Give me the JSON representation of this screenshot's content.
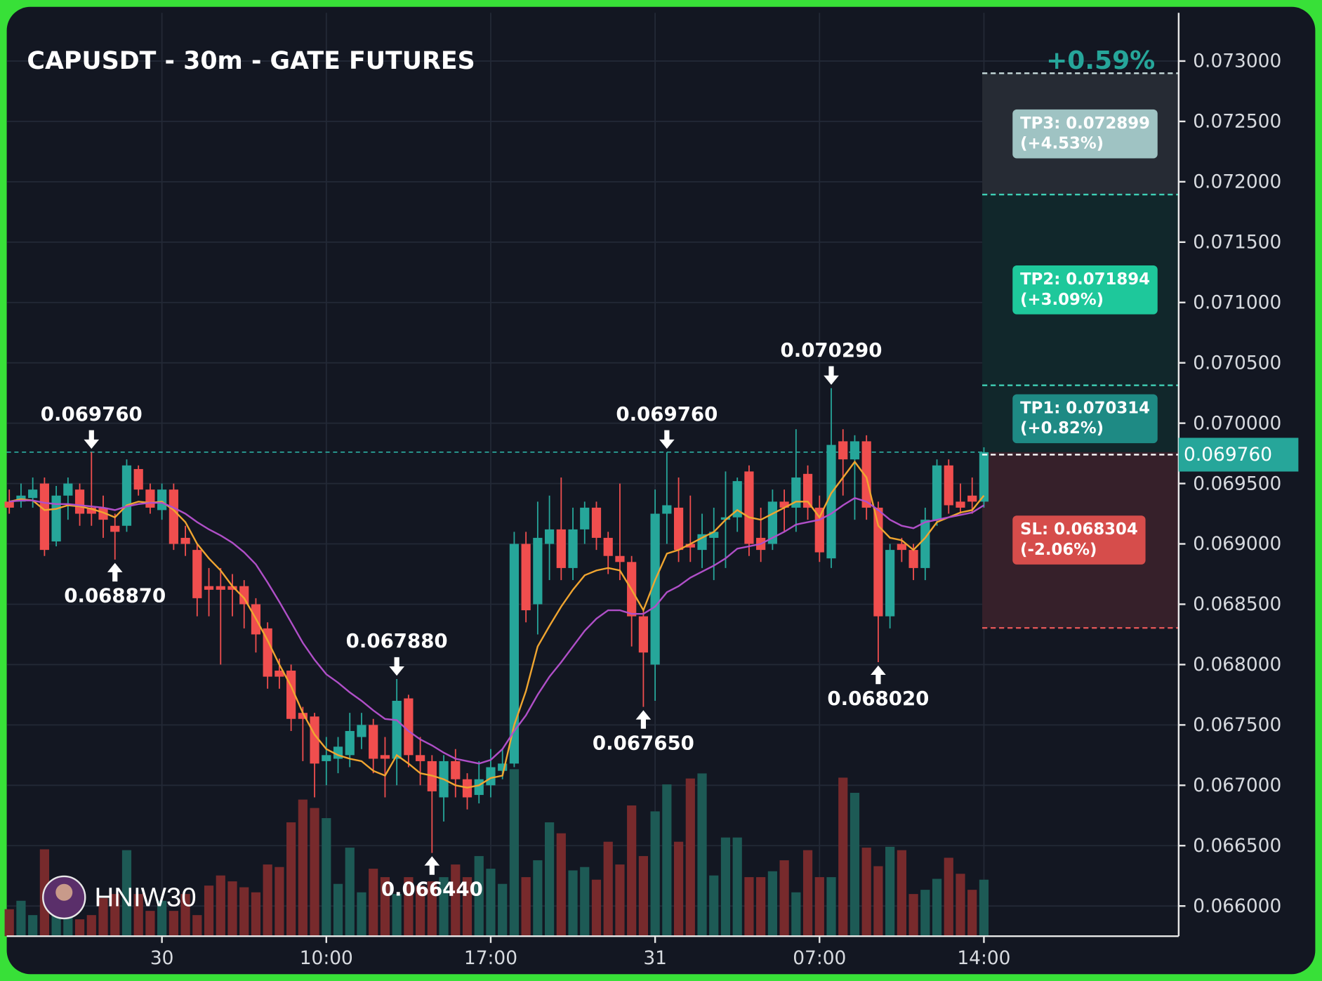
{
  "chart_data": {
    "type": "candlestick",
    "title": "CAPUSDT - 30m - GATE FUTURES",
    "change_label": "+0.59%",
    "watermark": "HNIW30",
    "categories": [
      null,
      null,
      null,
      null,
      null,
      null,
      null,
      null,
      null,
      null,
      null,
      null,
      null,
      "30",
      null,
      null,
      null,
      null,
      null,
      null,
      null,
      null,
      null,
      null,
      null,
      null,
      null,
      "10:00",
      null,
      null,
      null,
      null,
      null,
      null,
      null,
      null,
      null,
      null,
      null,
      null,
      null,
      "17:00",
      null,
      null,
      null,
      null,
      null,
      null,
      null,
      null,
      null,
      null,
      null,
      null,
      null,
      "31",
      null,
      null,
      null,
      null,
      null,
      null,
      null,
      null,
      null,
      null,
      null,
      null,
      null,
      "07:00",
      null,
      null,
      null,
      null,
      null,
      null,
      null,
      null,
      null,
      null,
      null,
      null,
      null,
      "14:00"
    ],
    "open": [
      0.06935,
      0.06935,
      0.06938,
      0.0695,
      0.06902,
      0.0694,
      0.06945,
      0.0693,
      0.0693,
      0.06915,
      0.06915,
      0.06962,
      0.06945,
      0.06928,
      0.06945,
      0.06905,
      0.06895,
      0.06865,
      0.06865,
      0.06865,
      0.06865,
      0.0685,
      0.0683,
      0.06795,
      0.06795,
      0.0676,
      0.06757,
      0.0672,
      0.06722,
      0.06725,
      0.0674,
      0.0675,
      0.06725,
      0.06722,
      0.06772,
      0.06725,
      0.0672,
      0.0669,
      0.0672,
      0.06705,
      0.06692,
      0.067,
      0.06712,
      0.06718,
      0.069,
      0.0685,
      0.069,
      0.06912,
      0.0688,
      0.06912,
      0.0693,
      0.06905,
      0.0689,
      0.06885,
      0.0684,
      0.068,
      0.06925,
      0.0693,
      0.069,
      0.06895,
      0.06905,
      0.0692,
      0.06922,
      0.0696,
      0.06905,
      0.069,
      0.06935,
      0.0693,
      0.06958,
      0.0693,
      0.06888,
      0.06985,
      0.0697,
      0.06985,
      0.0693,
      0.0684,
      0.069,
      0.06895,
      0.0688,
      0.0692,
      0.06965,
      0.06935,
      0.0694,
      0.06935
    ],
    "high": [
      0.06945,
      0.0695,
      0.06955,
      0.06955,
      0.06948,
      0.06955,
      0.0695,
      0.06976,
      0.0694,
      0.06925,
      0.0697,
      0.06965,
      0.0695,
      0.0695,
      0.0695,
      0.06915,
      0.069,
      0.0688,
      0.0688,
      0.06875,
      0.0687,
      0.06855,
      0.06835,
      0.06805,
      0.068,
      0.06765,
      0.0676,
      0.0674,
      0.0674,
      0.0676,
      0.0676,
      0.06755,
      0.0674,
      0.06788,
      0.06775,
      0.0674,
      0.06725,
      0.06725,
      0.0673,
      0.0671,
      0.0672,
      0.0673,
      0.0673,
      0.0691,
      0.0691,
      0.06935,
      0.0694,
      0.06955,
      0.0693,
      0.06935,
      0.06935,
      0.0691,
      0.0695,
      0.0689,
      0.06845,
      0.06945,
      0.06976,
      0.06955,
      0.0694,
      0.06925,
      0.0693,
      0.0696,
      0.06955,
      0.06965,
      0.0693,
      0.06945,
      0.06945,
      0.06995,
      0.06965,
      0.0694,
      0.07029,
      0.06995,
      0.0699,
      0.0699,
      0.06935,
      0.069,
      0.06905,
      0.069,
      0.0693,
      0.0697,
      0.0697,
      0.0695,
      0.06955,
      0.0698
    ],
    "low": [
      0.06925,
      0.0693,
      0.0693,
      0.0689,
      0.06898,
      0.0692,
      0.06915,
      0.06915,
      0.06905,
      0.06887,
      0.0691,
      0.0694,
      0.06925,
      0.0692,
      0.06895,
      0.0689,
      0.0684,
      0.0684,
      0.068,
      0.0684,
      0.0683,
      0.0681,
      0.0678,
      0.0678,
      0.06745,
      0.0672,
      0.0669,
      0.067,
      0.0671,
      0.06715,
      0.0673,
      0.0671,
      0.0669,
      0.067,
      0.06715,
      0.067,
      0.06644,
      0.0667,
      0.0669,
      0.0668,
      0.06685,
      0.0669,
      0.06705,
      0.06715,
      0.06835,
      0.06825,
      0.0687,
      0.0687,
      0.0687,
      0.069,
      0.06895,
      0.06875,
      0.0687,
      0.06815,
      0.06765,
      0.0677,
      0.069,
      0.06885,
      0.06885,
      0.0688,
      0.0687,
      0.0688,
      0.0691,
      0.0689,
      0.06885,
      0.06895,
      0.0691,
      0.0691,
      0.0692,
      0.06885,
      0.0688,
      0.0694,
      0.0692,
      0.0692,
      0.06802,
      0.0683,
      0.06885,
      0.0687,
      0.0687,
      0.06915,
      0.06925,
      0.06925,
      0.06925,
      0.0693
    ],
    "close": [
      0.0693,
      0.0694,
      0.06945,
      0.06895,
      0.0694,
      0.0695,
      0.06925,
      0.06925,
      0.0692,
      0.0691,
      0.06965,
      0.06945,
      0.0693,
      0.06945,
      0.069,
      0.069,
      0.06855,
      0.06862,
      0.06862,
      0.06862,
      0.0685,
      0.06825,
      0.0679,
      0.0679,
      0.06755,
      0.06755,
      0.06718,
      0.06725,
      0.06732,
      0.06745,
      0.0675,
      0.06722,
      0.06722,
      0.0677,
      0.06725,
      0.0672,
      0.06695,
      0.0672,
      0.06705,
      0.0669,
      0.06705,
      0.06715,
      0.06718,
      0.069,
      0.06845,
      0.06905,
      0.06912,
      0.0688,
      0.06912,
      0.0693,
      0.06905,
      0.0689,
      0.06885,
      0.0684,
      0.0681,
      0.06925,
      0.06932,
      0.06895,
      0.06897,
      0.06908,
      0.0691,
      0.06922,
      0.06952,
      0.069,
      0.06895,
      0.06935,
      0.0693,
      0.06955,
      0.0693,
      0.06893,
      0.06982,
      0.0697,
      0.06985,
      0.0693,
      0.0684,
      0.06895,
      0.06895,
      0.0688,
      0.0692,
      0.06965,
      0.06932,
      0.0693,
      0.06935,
      0.06976
    ],
    "volume": [
      32,
      42,
      25,
      103,
      35,
      65,
      20,
      25,
      45,
      50,
      102,
      50,
      30,
      42,
      30,
      50,
      25,
      60,
      72,
      65,
      58,
      52,
      85,
      82,
      135,
      162,
      152,
      140,
      62,
      105,
      52,
      80,
      70,
      50,
      70,
      60,
      65,
      70,
      85,
      70,
      95,
      80,
      62,
      198,
      70,
      90,
      135,
      122,
      78,
      82,
      67,
      112,
      85,
      155,
      95,
      148,
      180,
      112,
      187,
      193,
      72,
      117,
      117,
      70,
      70,
      77,
      90,
      52,
      102,
      70,
      70,
      188,
      170,
      105,
      83,
      106,
      102,
      50,
      55,
      68,
      93,
      74,
      55,
      67
    ],
    "ma_fast": {
      "color": "#f0a530",
      "values": [
        0.06935,
        0.06937,
        0.06936,
        0.06928,
        0.06929,
        0.06932,
        0.06931,
        0.06929,
        0.06926,
        0.06922,
        0.06932,
        0.06935,
        0.06934,
        0.06935,
        0.06928,
        0.06918,
        0.069,
        0.06888,
        0.06878,
        0.06865,
        0.06855,
        0.06838,
        0.0682,
        0.068,
        0.06782,
        0.0676,
        0.06742,
        0.0673,
        0.06725,
        0.06722,
        0.0672,
        0.06712,
        0.06708,
        0.06725,
        0.06718,
        0.0671,
        0.06708,
        0.06705,
        0.067,
        0.06698,
        0.067,
        0.06706,
        0.06708,
        0.0675,
        0.06778,
        0.06815,
        0.06832,
        0.06848,
        0.06862,
        0.06874,
        0.06878,
        0.0688,
        0.06878,
        0.06862,
        0.06845,
        0.0687,
        0.06892,
        0.06895,
        0.069,
        0.06905,
        0.0691,
        0.0692,
        0.06928,
        0.06922,
        0.0692,
        0.06925,
        0.0693,
        0.06935,
        0.06935,
        0.06922,
        0.06942,
        0.06955,
        0.06968,
        0.06955,
        0.06915,
        0.06905,
        0.06903,
        0.06895,
        0.06905,
        0.06918,
        0.06922,
        0.06926,
        0.06928,
        0.0694
      ]
    },
    "ma_slow": {
      "color": "#b04fc8",
      "values": [
        0.06935,
        0.06936,
        0.06936,
        0.06934,
        0.06933,
        0.06933,
        0.06932,
        0.06931,
        0.0693,
        0.06928,
        0.06931,
        0.06933,
        0.06934,
        0.06934,
        0.0693,
        0.06925,
        0.06918,
        0.06912,
        0.06907,
        0.06901,
        0.06893,
        0.06883,
        0.06868,
        0.06852,
        0.06835,
        0.06818,
        0.06804,
        0.06792,
        0.06785,
        0.06777,
        0.0677,
        0.06762,
        0.06755,
        0.06754,
        0.06745,
        0.06738,
        0.06733,
        0.06727,
        0.06722,
        0.0672,
        0.06718,
        0.06721,
        0.0673,
        0.06745,
        0.06758,
        0.06775,
        0.0679,
        0.06802,
        0.06815,
        0.06828,
        0.06838,
        0.06845,
        0.06845,
        0.06842,
        0.06842,
        0.06848,
        0.0686,
        0.06865,
        0.06872,
        0.06877,
        0.06882,
        0.06888,
        0.06896,
        0.06898,
        0.069,
        0.06905,
        0.0691,
        0.06916,
        0.06918,
        0.0692,
        0.06925,
        0.06932,
        0.06938,
        0.06935,
        0.06928,
        0.0692,
        0.06915,
        0.06913,
        0.06918,
        0.0692,
        0.06922,
        0.06924,
        0.06926,
        0.06932
      ]
    },
    "up_color": "#26a69a",
    "down_color": "#f04e4e",
    "up_volume_color": "#1d5a55",
    "down_volume_color": "#772a2c",
    "ylim": [
      0.06575,
      0.0734
    ],
    "yticks": [
      {
        "value": 0.066,
        "label": "0.066000"
      },
      {
        "value": 0.0665,
        "label": "0.066500"
      },
      {
        "value": 0.067,
        "label": "0.067000"
      },
      {
        "value": 0.0675,
        "label": "0.067500"
      },
      {
        "value": 0.068,
        "label": "0.068000"
      },
      {
        "value": 0.0685,
        "label": "0.068500"
      },
      {
        "value": 0.069,
        "label": "0.069000"
      },
      {
        "value": 0.0695,
        "label": "0.069500"
      },
      {
        "value": 0.07,
        "label": "0.070000"
      },
      {
        "value": 0.0705,
        "label": "0.070500"
      },
      {
        "value": 0.071,
        "label": "0.071000"
      },
      {
        "value": 0.0715,
        "label": "0.071500"
      },
      {
        "value": 0.072,
        "label": "0.072000"
      },
      {
        "value": 0.0725,
        "label": "0.072500"
      },
      {
        "value": 0.073,
        "label": "0.073000"
      }
    ],
    "grid": true,
    "last_price": {
      "value": 0.06976,
      "label": "0.069760"
    },
    "peak_labels": [
      {
        "value": 0.06976,
        "label": "0.069760"
      },
      {
        "value": 0.06788,
        "label": "0.067880"
      },
      {
        "value": 0.06976,
        "label": "0.069760"
      },
      {
        "value": 0.07029,
        "label": "0.070290"
      }
    ],
    "trough_labels": [
      {
        "value": 0.06887,
        "label": "0.068870"
      },
      {
        "value": 0.06644,
        "label": "0.066440"
      },
      {
        "value": 0.06765,
        "label": "0.067650"
      },
      {
        "value": 0.06802,
        "label": "0.068020"
      }
    ],
    "targets": [
      {
        "label": "TP3: 0.072899",
        "pct": "(+4.53%)",
        "value": 0.072899,
        "color": "#9fc3c3"
      },
      {
        "label": "TP2: 0.071894",
        "pct": "(+3.09%)",
        "value": 0.071894,
        "color": "#1ec89b"
      },
      {
        "label": "TP1: 0.070314",
        "pct": "(+0.82%)",
        "value": 0.070314,
        "color": "#1e8a84"
      }
    ],
    "stop": {
      "label": "SL: 0.068304",
      "pct": "(-2.06%)",
      "value": 0.068304,
      "color": "#d64d4b"
    }
  }
}
